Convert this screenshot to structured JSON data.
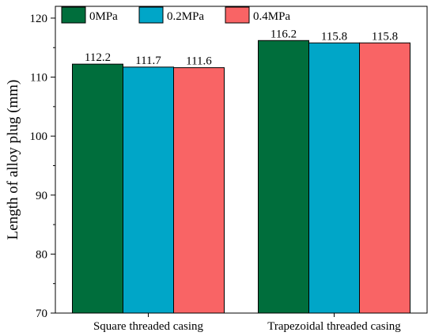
{
  "chart_data": {
    "type": "bar",
    "categories": [
      "Square threaded casing",
      "Trapezoidal threaded casing"
    ],
    "series": [
      {
        "name": "0MPa",
        "color": "#006E3C",
        "values": [
          112.2,
          116.2
        ],
        "labels": [
          "112.2",
          "116.2"
        ]
      },
      {
        "name": "0.2MPa",
        "color": "#00A6C8",
        "values": [
          111.7,
          115.8
        ],
        "labels": [
          "111.7",
          "115.8"
        ]
      },
      {
        "name": "0.4MPa",
        "color": "#F96465",
        "values": [
          111.6,
          115.8
        ],
        "labels": [
          "111.6",
          "115.8"
        ]
      }
    ],
    "ylabel": "Length of alloy plug (mm)",
    "xlabel": "",
    "ylim": [
      70,
      122
    ],
    "yticks": [
      70,
      80,
      90,
      100,
      110,
      120
    ],
    "grid": false,
    "legend": "top-left, horizontal"
  }
}
